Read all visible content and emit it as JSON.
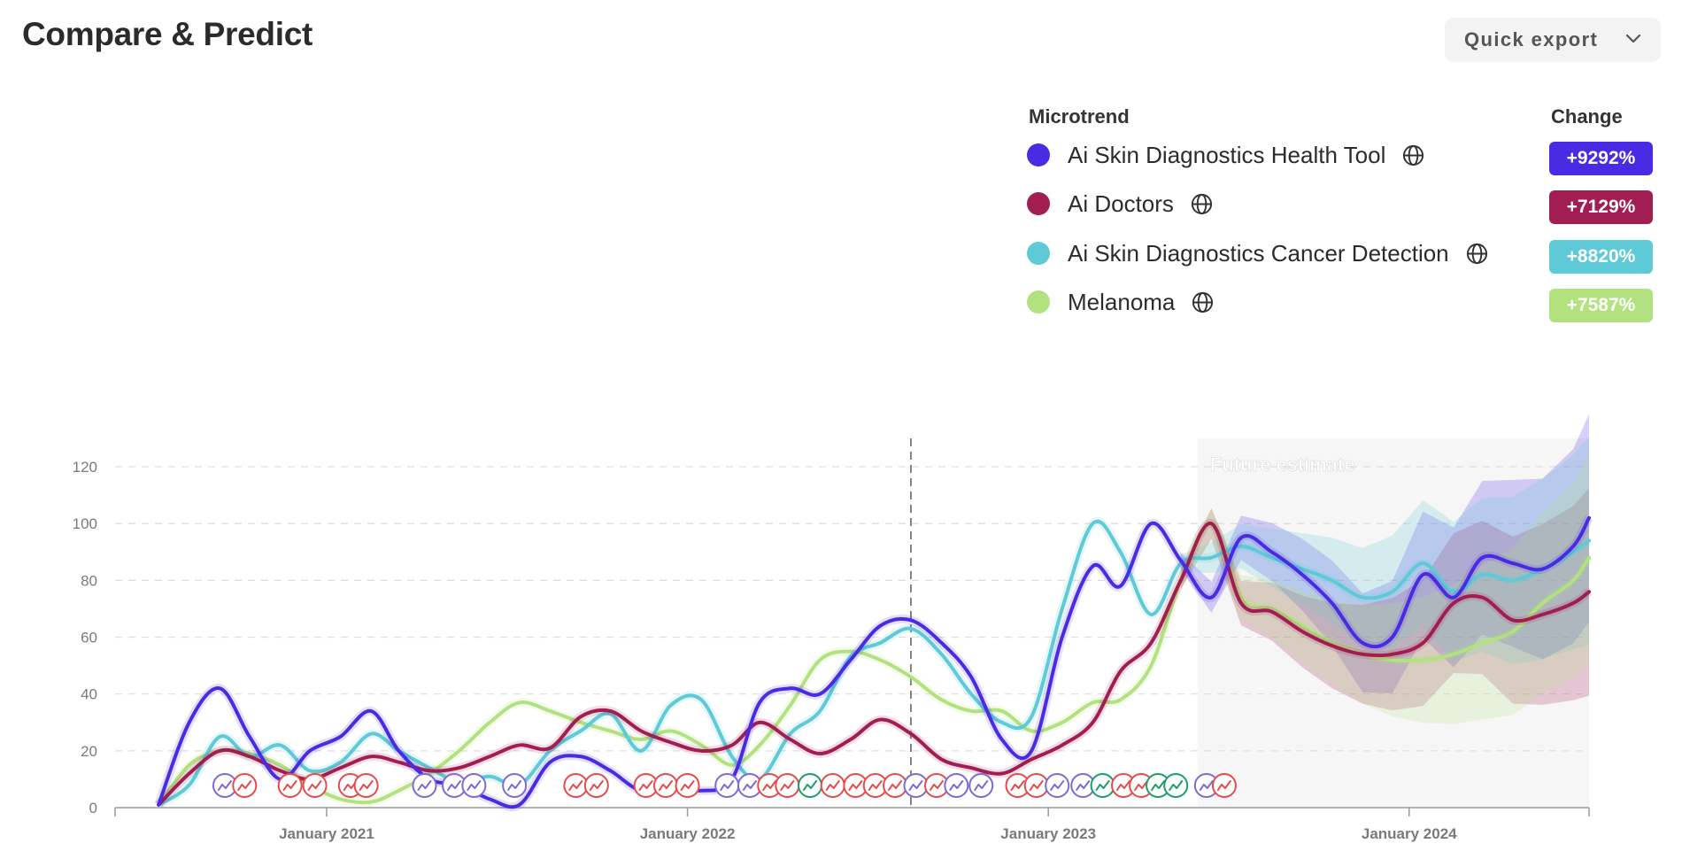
{
  "page": {
    "title": "Compare & Predict"
  },
  "toolbar": {
    "export_label": "Quick export",
    "export_icon": "chevron-down-icon"
  },
  "legend": {
    "microtrend_header": "Microtrend",
    "change_header": "Change",
    "items": [
      {
        "name": "Ai Skin Diagnostics Health Tool",
        "change": "+9292%",
        "color": "#4a2be4",
        "icon": "globe-icon"
      },
      {
        "name": "Ai Doctors",
        "change": "+7129%",
        "color": "#a21d51",
        "icon": "globe-icon"
      },
      {
        "name": "Ai Skin Diagnostics Cancer Detection",
        "change": "+8820%",
        "color": "#5ecad8",
        "icon": "globe-icon"
      },
      {
        "name": "Melanoma",
        "change": "+7587%",
        "color": "#b2e27f",
        "icon": "globe-icon"
      }
    ]
  },
  "chart_data": {
    "type": "line",
    "title": "",
    "xlabel": "",
    "ylabel": "",
    "ylim": [
      0,
      130
    ],
    "yticks": [
      0,
      20,
      40,
      60,
      80,
      100,
      120
    ],
    "grid": "horizontal dashed",
    "x_range": [
      "2020-06-01",
      "2024-07-01"
    ],
    "xtick_labels": [
      {
        "date": "2021-01-01",
        "label": "January 2021"
      },
      {
        "date": "2022-01-01",
        "label": "January 2022"
      },
      {
        "date": "2023-01-01",
        "label": "January 2023"
      },
      {
        "date": "2024-01-01",
        "label": "January 2024"
      }
    ],
    "today_marker_date": "2022-08-15",
    "future_start_date": "2023-06-01",
    "future_label": "Future estimate",
    "series": [
      {
        "name": "Ai Skin Diagnostics Health Tool",
        "color": "#4a2be4",
        "points": [
          [
            "2020-07-15",
            1
          ],
          [
            "2020-08-15",
            30
          ],
          [
            "2020-09-15",
            42
          ],
          [
            "2020-10-15",
            25
          ],
          [
            "2020-11-15",
            10
          ],
          [
            "2020-12-15",
            20
          ],
          [
            "2021-01-15",
            25
          ],
          [
            "2021-02-15",
            34
          ],
          [
            "2021-03-15",
            20
          ],
          [
            "2021-04-15",
            10
          ],
          [
            "2021-05-15",
            8
          ],
          [
            "2021-06-15",
            3
          ],
          [
            "2021-07-15",
            1
          ],
          [
            "2021-08-15",
            16
          ],
          [
            "2021-09-15",
            18
          ],
          [
            "2021-10-15",
            13
          ],
          [
            "2021-11-15",
            6
          ],
          [
            "2021-12-15",
            8
          ],
          [
            "2022-01-15",
            6
          ],
          [
            "2022-02-15",
            10
          ],
          [
            "2022-03-15",
            37
          ],
          [
            "2022-04-15",
            42
          ],
          [
            "2022-05-15",
            40
          ],
          [
            "2022-06-15",
            52
          ],
          [
            "2022-07-15",
            64
          ],
          [
            "2022-08-15",
            66
          ],
          [
            "2022-09-15",
            58
          ],
          [
            "2022-10-15",
            46
          ],
          [
            "2022-11-15",
            24
          ],
          [
            "2022-12-15",
            20
          ],
          [
            "2023-01-15",
            60
          ],
          [
            "2023-02-15",
            85
          ],
          [
            "2023-03-15",
            78
          ],
          [
            "2023-04-15",
            100
          ],
          [
            "2023-05-15",
            87
          ],
          [
            "2023-06-15",
            74
          ],
          [
            "2023-07-15",
            95
          ],
          [
            "2023-08-15",
            90
          ],
          [
            "2023-09-15",
            82
          ],
          [
            "2023-10-15",
            72
          ],
          [
            "2023-11-15",
            58
          ],
          [
            "2023-12-15",
            60
          ],
          [
            "2024-01-15",
            82
          ],
          [
            "2024-02-15",
            74
          ],
          [
            "2024-03-15",
            88
          ],
          [
            "2024-04-15",
            86
          ],
          [
            "2024-05-15",
            84
          ],
          [
            "2024-06-15",
            92
          ],
          [
            "2024-07-01",
            102
          ]
        ]
      },
      {
        "name": "Ai Doctors",
        "color": "#a21d51",
        "points": [
          [
            "2020-07-15",
            1
          ],
          [
            "2020-08-15",
            12
          ],
          [
            "2020-09-15",
            20
          ],
          [
            "2020-10-15",
            18
          ],
          [
            "2020-11-15",
            13
          ],
          [
            "2020-12-15",
            10
          ],
          [
            "2021-01-15",
            14
          ],
          [
            "2021-02-15",
            18
          ],
          [
            "2021-03-15",
            16
          ],
          [
            "2021-04-15",
            13
          ],
          [
            "2021-05-15",
            14
          ],
          [
            "2021-06-15",
            18
          ],
          [
            "2021-07-15",
            22
          ],
          [
            "2021-08-15",
            21
          ],
          [
            "2021-09-15",
            32
          ],
          [
            "2021-10-15",
            34
          ],
          [
            "2021-11-15",
            27
          ],
          [
            "2021-12-15",
            23
          ],
          [
            "2022-01-15",
            20
          ],
          [
            "2022-02-15",
            22
          ],
          [
            "2022-03-15",
            30
          ],
          [
            "2022-04-15",
            24
          ],
          [
            "2022-05-15",
            19
          ],
          [
            "2022-06-15",
            24
          ],
          [
            "2022-07-15",
            31
          ],
          [
            "2022-08-15",
            26
          ],
          [
            "2022-09-15",
            17
          ],
          [
            "2022-10-15",
            14
          ],
          [
            "2022-11-15",
            12
          ],
          [
            "2022-12-15",
            17
          ],
          [
            "2023-01-15",
            22
          ],
          [
            "2023-02-15",
            30
          ],
          [
            "2023-03-15",
            48
          ],
          [
            "2023-04-15",
            58
          ],
          [
            "2023-05-15",
            80
          ],
          [
            "2023-06-15",
            100
          ],
          [
            "2023-07-15",
            72
          ],
          [
            "2023-08-15",
            69
          ],
          [
            "2023-09-15",
            62
          ],
          [
            "2023-10-15",
            57
          ],
          [
            "2023-11-15",
            54
          ],
          [
            "2023-12-15",
            54
          ],
          [
            "2024-01-15",
            58
          ],
          [
            "2024-02-15",
            72
          ],
          [
            "2024-03-15",
            74
          ],
          [
            "2024-04-15",
            66
          ],
          [
            "2024-05-15",
            68
          ],
          [
            "2024-06-15",
            72
          ],
          [
            "2024-07-01",
            76
          ]
        ]
      },
      {
        "name": "Ai Skin Diagnostics Cancer Detection",
        "color": "#5ecad8",
        "points": [
          [
            "2020-07-15",
            1
          ],
          [
            "2020-08-15",
            8
          ],
          [
            "2020-09-15",
            25
          ],
          [
            "2020-10-15",
            18
          ],
          [
            "2020-11-15",
            22
          ],
          [
            "2020-12-15",
            13
          ],
          [
            "2021-01-15",
            16
          ],
          [
            "2021-02-15",
            26
          ],
          [
            "2021-03-15",
            20
          ],
          [
            "2021-04-15",
            14
          ],
          [
            "2021-05-15",
            9
          ],
          [
            "2021-06-15",
            11
          ],
          [
            "2021-07-15",
            8
          ],
          [
            "2021-08-15",
            20
          ],
          [
            "2021-09-15",
            27
          ],
          [
            "2021-10-15",
            33
          ],
          [
            "2021-11-15",
            20
          ],
          [
            "2021-12-15",
            36
          ],
          [
            "2022-01-15",
            38
          ],
          [
            "2022-02-15",
            18
          ],
          [
            "2022-03-15",
            10
          ],
          [
            "2022-04-15",
            26
          ],
          [
            "2022-05-15",
            34
          ],
          [
            "2022-06-15",
            53
          ],
          [
            "2022-07-15",
            58
          ],
          [
            "2022-08-15",
            63
          ],
          [
            "2022-09-15",
            54
          ],
          [
            "2022-10-15",
            40
          ],
          [
            "2022-11-15",
            30
          ],
          [
            "2022-12-15",
            32
          ],
          [
            "2023-01-15",
            70
          ],
          [
            "2023-02-15",
            100
          ],
          [
            "2023-03-15",
            90
          ],
          [
            "2023-04-15",
            68
          ],
          [
            "2023-05-15",
            86
          ],
          [
            "2023-06-15",
            88
          ],
          [
            "2023-07-15",
            92
          ],
          [
            "2023-08-15",
            88
          ],
          [
            "2023-09-15",
            84
          ],
          [
            "2023-10-15",
            80
          ],
          [
            "2023-11-15",
            74
          ],
          [
            "2023-12-15",
            76
          ],
          [
            "2024-01-15",
            86
          ],
          [
            "2024-02-15",
            76
          ],
          [
            "2024-03-15",
            82
          ],
          [
            "2024-04-15",
            80
          ],
          [
            "2024-05-15",
            84
          ],
          [
            "2024-06-15",
            90
          ],
          [
            "2024-07-01",
            94
          ]
        ]
      },
      {
        "name": "Melanoma",
        "color": "#b2e27f",
        "points": [
          [
            "2020-07-15",
            1
          ],
          [
            "2020-08-15",
            15
          ],
          [
            "2020-09-15",
            20
          ],
          [
            "2020-10-15",
            19
          ],
          [
            "2020-11-15",
            15
          ],
          [
            "2020-12-15",
            8
          ],
          [
            "2021-01-15",
            3
          ],
          [
            "2021-02-15",
            2
          ],
          [
            "2021-03-15",
            6
          ],
          [
            "2021-04-15",
            12
          ],
          [
            "2021-05-15",
            20
          ],
          [
            "2021-06-15",
            30
          ],
          [
            "2021-07-15",
            37
          ],
          [
            "2021-08-15",
            34
          ],
          [
            "2021-09-15",
            30
          ],
          [
            "2021-10-15",
            27
          ],
          [
            "2021-11-15",
            24
          ],
          [
            "2021-12-15",
            27
          ],
          [
            "2022-01-15",
            22
          ],
          [
            "2022-02-15",
            15
          ],
          [
            "2022-03-15",
            22
          ],
          [
            "2022-04-15",
            36
          ],
          [
            "2022-05-15",
            52
          ],
          [
            "2022-06-15",
            55
          ],
          [
            "2022-07-15",
            52
          ],
          [
            "2022-08-15",
            46
          ],
          [
            "2022-09-15",
            38
          ],
          [
            "2022-10-15",
            34
          ],
          [
            "2022-11-15",
            34
          ],
          [
            "2022-12-15",
            27
          ],
          [
            "2023-01-15",
            30
          ],
          [
            "2023-02-15",
            37
          ],
          [
            "2023-03-15",
            38
          ],
          [
            "2023-04-15",
            50
          ],
          [
            "2023-05-15",
            80
          ],
          [
            "2023-06-15",
            100
          ],
          [
            "2023-07-15",
            74
          ],
          [
            "2023-08-15",
            70
          ],
          [
            "2023-09-15",
            64
          ],
          [
            "2023-10-15",
            58
          ],
          [
            "2023-11-15",
            54
          ],
          [
            "2023-12-15",
            52
          ],
          [
            "2024-01-15",
            52
          ],
          [
            "2024-02-15",
            54
          ],
          [
            "2024-03-15",
            58
          ],
          [
            "2024-04-15",
            62
          ],
          [
            "2024-05-15",
            72
          ],
          [
            "2024-06-15",
            80
          ],
          [
            "2024-07-01",
            88
          ]
        ]
      }
    ],
    "event_markers": [
      {
        "date": "2020-09-20",
        "color": "#7c6ad6"
      },
      {
        "date": "2020-10-10",
        "color": "#e84a4a"
      },
      {
        "date": "2020-11-25",
        "color": "#e84a4a"
      },
      {
        "date": "2020-12-20",
        "color": "#e84a4a"
      },
      {
        "date": "2021-01-25",
        "color": "#e84a4a"
      },
      {
        "date": "2021-02-10",
        "color": "#e84a4a"
      },
      {
        "date": "2021-04-10",
        "color": "#7c6ad6"
      },
      {
        "date": "2021-05-10",
        "color": "#7c6ad6"
      },
      {
        "date": "2021-05-30",
        "color": "#7c6ad6"
      },
      {
        "date": "2021-07-10",
        "color": "#7c6ad6"
      },
      {
        "date": "2021-09-10",
        "color": "#e84a4a"
      },
      {
        "date": "2021-10-01",
        "color": "#e84a4a"
      },
      {
        "date": "2021-11-20",
        "color": "#e84a4a"
      },
      {
        "date": "2021-12-10",
        "color": "#e84a4a"
      },
      {
        "date": "2022-01-01",
        "color": "#e84a4a"
      },
      {
        "date": "2022-02-10",
        "color": "#7c6ad6"
      },
      {
        "date": "2022-03-05",
        "color": "#7c6ad6"
      },
      {
        "date": "2022-03-25",
        "color": "#e84a4a"
      },
      {
        "date": "2022-04-12",
        "color": "#e84a4a"
      },
      {
        "date": "2022-05-05",
        "color": "#1a9e6a"
      },
      {
        "date": "2022-05-28",
        "color": "#e84a4a"
      },
      {
        "date": "2022-06-20",
        "color": "#e84a4a"
      },
      {
        "date": "2022-07-10",
        "color": "#e84a4a"
      },
      {
        "date": "2022-07-30",
        "color": "#e84a4a"
      },
      {
        "date": "2022-08-20",
        "color": "#7c6ad6"
      },
      {
        "date": "2022-09-10",
        "color": "#e84a4a"
      },
      {
        "date": "2022-09-30",
        "color": "#7c6ad6"
      },
      {
        "date": "2022-10-25",
        "color": "#7c6ad6"
      },
      {
        "date": "2022-12-01",
        "color": "#e84a4a"
      },
      {
        "date": "2022-12-20",
        "color": "#e84a4a"
      },
      {
        "date": "2023-01-10",
        "color": "#7c6ad6"
      },
      {
        "date": "2023-02-05",
        "color": "#7c6ad6"
      },
      {
        "date": "2023-02-25",
        "color": "#1a9e6a"
      },
      {
        "date": "2023-03-18",
        "color": "#e84a4a"
      },
      {
        "date": "2023-04-05",
        "color": "#e84a4a"
      },
      {
        "date": "2023-04-22",
        "color": "#1a9e6a"
      },
      {
        "date": "2023-05-10",
        "color": "#1a9e6a"
      },
      {
        "date": "2023-06-10",
        "color": "#7c6ad6"
      },
      {
        "date": "2023-06-28",
        "color": "#e84a4a"
      }
    ]
  }
}
